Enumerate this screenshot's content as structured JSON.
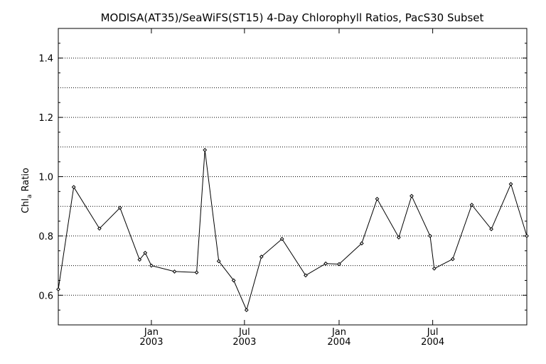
{
  "chart_data": {
    "type": "line",
    "title": "MODISA(AT35)/SeaWiFS(ST15) 4-Day Chlorophyll Ratios, PacS30 Subset",
    "ylabel_main": "Chl",
    "ylabel_sub": "a",
    "ylabel_rest": " Ratio",
    "xlabel": "",
    "ylim": [
      0.5,
      1.5
    ],
    "y_ticks": [
      0.6,
      0.8,
      1.0,
      1.2,
      1.4
    ],
    "y_tick_labels": [
      "0.6",
      "0.8",
      "1.0",
      "1.2",
      "1.4"
    ],
    "y_gridlines": [
      0.6,
      0.7,
      0.8,
      0.9,
      1.0,
      1.1,
      1.2,
      1.3,
      1.4
    ],
    "xlim": [
      "2002-07-04",
      "2004-12-31"
    ],
    "x_ticks": [
      {
        "date": "2003-01-01",
        "month": "Jan",
        "year": "2003"
      },
      {
        "date": "2003-07-01",
        "month": "Jul",
        "year": "2003"
      },
      {
        "date": "2004-01-01",
        "month": "Jan",
        "year": "2004"
      },
      {
        "date": "2004-07-01",
        "month": "Jul",
        "year": "2004"
      }
    ],
    "grid": "horizontal dotted",
    "series": [
      {
        "marker": "diamond",
        "color": "#000000",
        "points": [
          {
            "date": "2002-07-04",
            "y": 0.62
          },
          {
            "date": "2002-08-03",
            "y": 0.965
          },
          {
            "date": "2002-09-22",
            "y": 0.825
          },
          {
            "date": "2002-11-01",
            "y": 0.895
          },
          {
            "date": "2002-12-09",
            "y": 0.72
          },
          {
            "date": "2002-12-20",
            "y": 0.743
          },
          {
            "date": "2003-01-01",
            "y": 0.7
          },
          {
            "date": "2003-02-15",
            "y": 0.68
          },
          {
            "date": "2003-03-30",
            "y": 0.677
          },
          {
            "date": "2003-04-15",
            "y": 1.09
          },
          {
            "date": "2003-05-12",
            "y": 0.715
          },
          {
            "date": "2003-06-10",
            "y": 0.65
          },
          {
            "date": "2003-07-05",
            "y": 0.55
          },
          {
            "date": "2003-08-03",
            "y": 0.73
          },
          {
            "date": "2003-09-12",
            "y": 0.79
          },
          {
            "date": "2003-10-28",
            "y": 0.667
          },
          {
            "date": "2003-12-06",
            "y": 0.707
          },
          {
            "date": "2004-01-01",
            "y": 0.705
          },
          {
            "date": "2004-02-14",
            "y": 0.775
          },
          {
            "date": "2004-03-15",
            "y": 0.925
          },
          {
            "date": "2004-04-26",
            "y": 0.795
          },
          {
            "date": "2004-05-21",
            "y": 0.935
          },
          {
            "date": "2004-06-26",
            "y": 0.8
          },
          {
            "date": "2004-07-04",
            "y": 0.69
          },
          {
            "date": "2004-08-09",
            "y": 0.722
          },
          {
            "date": "2004-09-15",
            "y": 0.905
          },
          {
            "date": "2004-10-23",
            "y": 0.823
          },
          {
            "date": "2004-11-30",
            "y": 0.975
          },
          {
            "date": "2004-12-31",
            "y": 0.8
          }
        ]
      }
    ]
  }
}
